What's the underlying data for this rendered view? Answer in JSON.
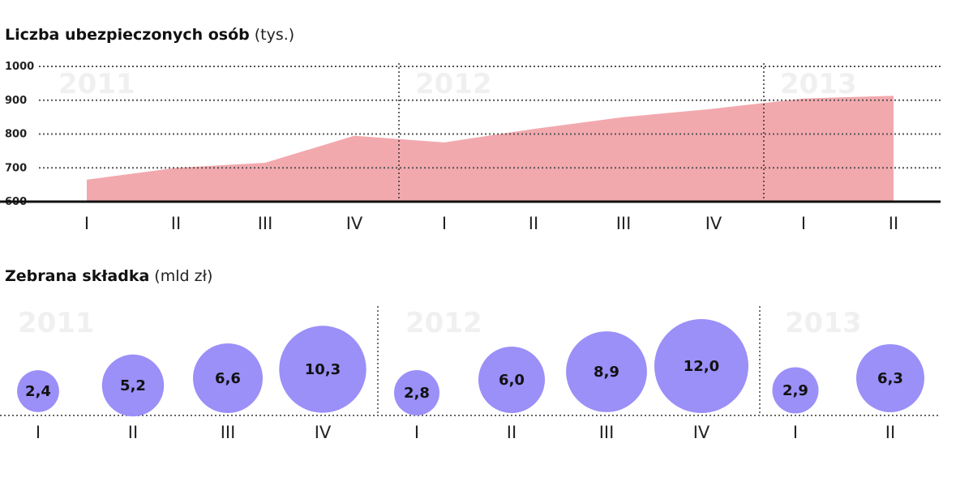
{
  "chart_data": [
    {
      "type": "area",
      "title": "Liczba ubezpieczonych osób",
      "unit": "(tys.)",
      "ylim": [
        600,
        1000
      ],
      "yticks": [
        "600",
        "700",
        "800",
        "900",
        "1000"
      ],
      "x_labels": [
        "I",
        "II",
        "III",
        "IV",
        "I",
        "II",
        "III",
        "IV",
        "I",
        "II"
      ],
      "years": [
        "2011",
        "2012",
        "2013"
      ],
      "values": [
        665,
        700,
        715,
        795,
        775,
        815,
        850,
        875,
        905,
        913
      ],
      "color": "#f2a9ae",
      "grid": true
    },
    {
      "type": "bubble",
      "title": "Zebrana składka",
      "unit": "(mld zł)",
      "x_labels": [
        "I",
        "II",
        "III",
        "IV",
        "I",
        "II",
        "III",
        "IV",
        "I",
        "II"
      ],
      "years": [
        "2011",
        "2012",
        "2013"
      ],
      "value_labels": [
        "2,4",
        "5,2",
        "6,6",
        "10,3",
        "2,8",
        "6,0",
        "8,9",
        "12,0",
        "2,9",
        "6,3"
      ],
      "values": [
        2.4,
        5.2,
        6.6,
        10.3,
        2.8,
        6.0,
        8.9,
        12.0,
        2.9,
        6.3
      ],
      "color": "#9b8ff8"
    }
  ]
}
